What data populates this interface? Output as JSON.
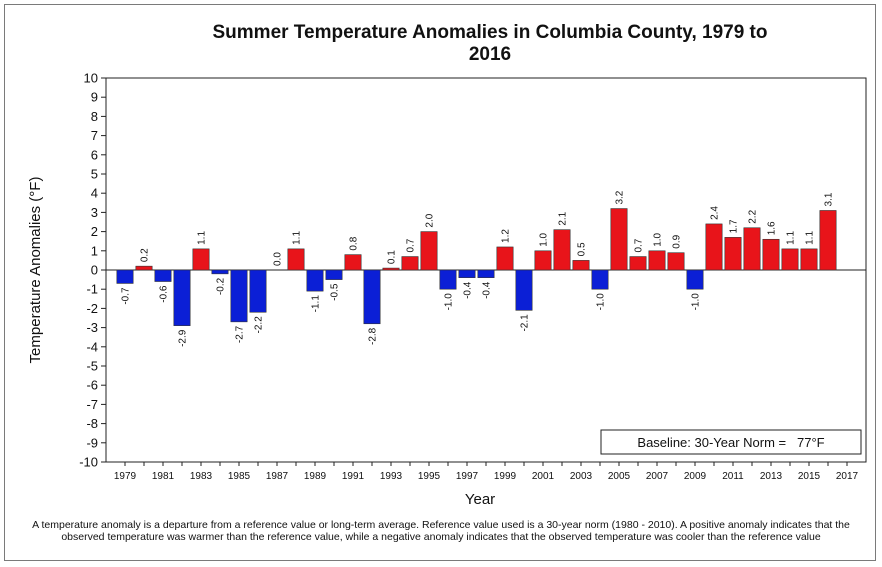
{
  "chart_data": {
    "type": "bar",
    "title_line1": "Summer Temperature Anomalies in Columbia County, 1979 to",
    "title_line2": "2016",
    "xlabel": "Year",
    "ylabel": "Temperature Anomalies (°F)",
    "ylim": [
      -10,
      10
    ],
    "yticks": [
      10,
      9,
      8,
      7,
      6,
      5,
      4,
      3,
      2,
      1,
      0,
      -1,
      -2,
      -3,
      -4,
      -5,
      -6,
      -7,
      -8,
      -9,
      -10
    ],
    "xticks": [
      "1979",
      "1981",
      "1983",
      "1985",
      "1987",
      "1989",
      "1991",
      "1993",
      "1995",
      "1997",
      "1999",
      "2001",
      "2003",
      "2005",
      "2007",
      "2009",
      "2011",
      "2013",
      "2015",
      "2017"
    ],
    "x": [
      1979,
      1980,
      1981,
      1982,
      1983,
      1984,
      1985,
      1986,
      1987,
      1988,
      1989,
      1990,
      1991,
      1992,
      1993,
      1994,
      1995,
      1996,
      1997,
      1998,
      1999,
      2000,
      2001,
      2002,
      2003,
      2004,
      2005,
      2006,
      2007,
      2008,
      2009,
      2010,
      2011,
      2012,
      2013,
      2014,
      2015,
      2016
    ],
    "values": [
      -0.7,
      0.2,
      -0.6,
      -2.9,
      1.1,
      -0.2,
      -2.7,
      -2.2,
      0.0,
      1.1,
      -1.1,
      -0.5,
      0.8,
      -2.8,
      0.1,
      0.7,
      2.0,
      -1.0,
      -0.4,
      -0.4,
      1.2,
      -2.1,
      1.0,
      2.1,
      0.5,
      -1.0,
      3.2,
      0.7,
      1.0,
      0.9,
      -1.0,
      2.4,
      1.7,
      2.2,
      1.6,
      1.1,
      1.1,
      3.1
    ],
    "labels": [
      "-0.7",
      "0.2",
      "-0.6",
      "-2.9",
      "1.1",
      "-0.2",
      "-2.7",
      "-2.2",
      "0.0",
      "1.1",
      "-1.1",
      "-0.5",
      "0.8",
      "-2.8",
      "0.1",
      "0.7",
      "2.0",
      "-1.0",
      "-0.4",
      "-0.4",
      "1.2",
      "-2.1",
      "1.0",
      "2.1",
      "0.5",
      "-1.0",
      "3.2",
      "0.7",
      "1.0",
      "0.9",
      "-1.0",
      "2.4",
      "1.7",
      "2.2",
      "1.6",
      "1.1",
      "1.1",
      "3.1"
    ],
    "colors": {
      "positive": "#e8141a",
      "negative": "#0b1fd6"
    },
    "grid": false,
    "annotation": "Baseline: 30-Year Norm =   77°F"
  },
  "footnote": "A temperature anomaly is a departure from a reference value or long-term average. Reference value used is a 30-year norm (1980 - 2010). A positive anomaly indicates that the observed temperature was warmer than the reference value, while a negative anomaly indicates that the observed temperature was cooler than the reference value"
}
